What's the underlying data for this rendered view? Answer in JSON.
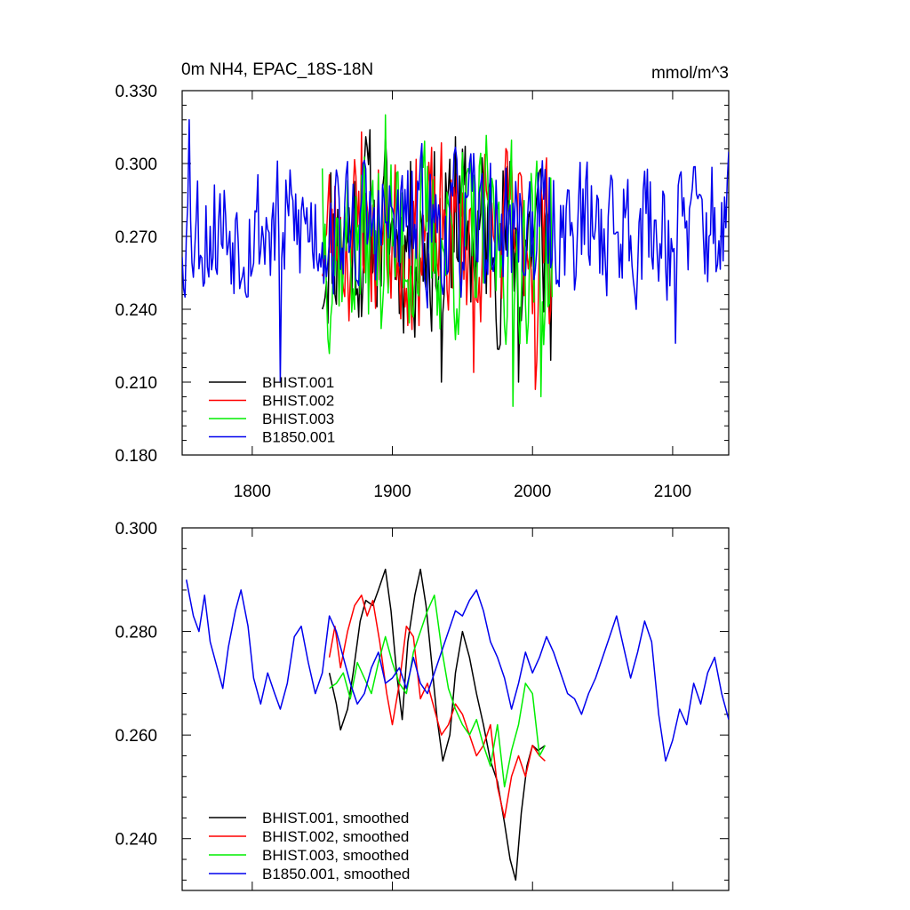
{
  "header": {
    "title": "0m NH4, EPAC_18S-18N",
    "units": "mmol/m^3"
  },
  "chart_data": [
    {
      "type": "line",
      "panel": "top",
      "title": "0m NH4, EPAC_18S-18N",
      "units": "mmol/m^3",
      "xlim": [
        1750,
        2140
      ],
      "ylim": [
        0.18,
        0.33
      ],
      "yticks": [
        0.18,
        0.21,
        0.24,
        0.27,
        0.3,
        0.33
      ],
      "ytick_labels": [
        "0.180",
        "0.210",
        "0.240",
        "0.270",
        "0.300",
        "0.330"
      ],
      "xticks": [
        1800,
        1900,
        2000,
        2100
      ],
      "xtick_labels": [
        "1800",
        "1900",
        "2000",
        "2100"
      ],
      "legend_position": "bottom-left",
      "series": [
        {
          "name": "BHIST.001",
          "color": "#000000",
          "start": 1850,
          "end": 2014,
          "mean": 0.271,
          "amp": 0.022,
          "seed": 11,
          "keypoints": [
            [
              1850,
              0.24
            ],
            [
              1880,
              0.3
            ],
            [
              1935,
              0.21
            ],
            [
              1945,
              0.311
            ],
            [
              1990,
              0.21
            ],
            [
              2013,
              0.219
            ]
          ]
        },
        {
          "name": "BHIST.002",
          "color": "#ff0000",
          "start": 1850,
          "end": 2014,
          "mean": 0.27,
          "amp": 0.02,
          "seed": 23,
          "keypoints": [
            [
              1878,
              0.313
            ],
            [
              1958,
              0.214
            ],
            [
              2002,
              0.207
            ],
            [
              2013,
              0.24
            ]
          ]
        },
        {
          "name": "BHIST.003",
          "color": "#00ee00",
          "start": 1850,
          "end": 2014,
          "mean": 0.268,
          "amp": 0.022,
          "seed": 37,
          "keypoints": [
            [
              1850,
              0.298
            ],
            [
              1895,
              0.32
            ],
            [
              1986,
              0.2
            ],
            [
              2006,
              0.204
            ]
          ]
        },
        {
          "name": "B1850.001",
          "color": "#0000ee",
          "start": 1750,
          "end": 2140,
          "mean": 0.274,
          "amp": 0.016,
          "seed": 53,
          "keypoints": [
            [
              1755,
              0.318
            ],
            [
              1820,
              0.21
            ],
            [
              2102,
              0.226
            ]
          ]
        }
      ]
    },
    {
      "type": "line",
      "panel": "bottom",
      "xlim": [
        1750,
        2140
      ],
      "ylim": [
        0.23,
        0.3
      ],
      "yticks": [
        0.24,
        0.26,
        0.28,
        0.3
      ],
      "ytick_labels": [
        "0.240",
        "0.260",
        "0.280",
        "0.300"
      ],
      "xticks": [
        1800,
        1900,
        2000,
        2100
      ],
      "xtick_labels": [],
      "legend_position": "bottom-left",
      "series": [
        {
          "name": "BHIST.001, smoothed",
          "color": "#000000",
          "points": [
            [
              1855,
              0.272
            ],
            [
              1860,
              0.266
            ],
            [
              1863,
              0.261
            ],
            [
              1868,
              0.265
            ],
            [
              1872,
              0.272
            ],
            [
              1877,
              0.282
            ],
            [
              1881,
              0.286
            ],
            [
              1886,
              0.285
            ],
            [
              1890,
              0.288
            ],
            [
              1895,
              0.292
            ],
            [
              1899,
              0.284
            ],
            [
              1903,
              0.272
            ],
            [
              1907,
              0.263
            ],
            [
              1911,
              0.278
            ],
            [
              1916,
              0.287
            ],
            [
              1920,
              0.292
            ],
            [
              1924,
              0.285
            ],
            [
              1928,
              0.274
            ],
            [
              1932,
              0.263
            ],
            [
              1936,
              0.255
            ],
            [
              1941,
              0.26
            ],
            [
              1945,
              0.272
            ],
            [
              1950,
              0.28
            ],
            [
              1955,
              0.275
            ],
            [
              1960,
              0.268
            ],
            [
              1965,
              0.262
            ],
            [
              1970,
              0.255
            ],
            [
              1975,
              0.251
            ],
            [
              1980,
              0.243
            ],
            [
              1984,
              0.236
            ],
            [
              1988,
              0.232
            ],
            [
              1992,
              0.245
            ],
            [
              1996,
              0.254
            ],
            [
              2000,
              0.258
            ],
            [
              2004,
              0.257
            ],
            [
              2009,
              0.258
            ]
          ]
        },
        {
          "name": "BHIST.002, smoothed",
          "color": "#ff0000",
          "points": [
            [
              1855,
              0.275
            ],
            [
              1859,
              0.281
            ],
            [
              1863,
              0.273
            ],
            [
              1868,
              0.28
            ],
            [
              1873,
              0.285
            ],
            [
              1878,
              0.287
            ],
            [
              1882,
              0.283
            ],
            [
              1886,
              0.286
            ],
            [
              1891,
              0.278
            ],
            [
              1896,
              0.268
            ],
            [
              1900,
              0.262
            ],
            [
              1905,
              0.27
            ],
            [
              1910,
              0.281
            ],
            [
              1915,
              0.279
            ],
            [
              1920,
              0.267
            ],
            [
              1925,
              0.27
            ],
            [
              1930,
              0.265
            ],
            [
              1935,
              0.26
            ],
            [
              1940,
              0.262
            ],
            [
              1945,
              0.266
            ],
            [
              1950,
              0.264
            ],
            [
              1955,
              0.26
            ],
            [
              1960,
              0.256
            ],
            [
              1965,
              0.258
            ],
            [
              1970,
              0.262
            ],
            [
              1975,
              0.25
            ],
            [
              1980,
              0.244
            ],
            [
              1985,
              0.252
            ],
            [
              1990,
              0.256
            ],
            [
              1995,
              0.252
            ],
            [
              2000,
              0.258
            ],
            [
              2005,
              0.256
            ],
            [
              2009,
              0.255
            ]
          ]
        },
        {
          "name": "BHIST.003, smoothed",
          "color": "#00ee00",
          "points": [
            [
              1855,
              0.269
            ],
            [
              1860,
              0.27
            ],
            [
              1865,
              0.272
            ],
            [
              1870,
              0.267
            ],
            [
              1875,
              0.274
            ],
            [
              1880,
              0.271
            ],
            [
              1885,
              0.268
            ],
            [
              1890,
              0.274
            ],
            [
              1895,
              0.279
            ],
            [
              1900,
              0.274
            ],
            [
              1905,
              0.27
            ],
            [
              1910,
              0.268
            ],
            [
              1915,
              0.276
            ],
            [
              1920,
              0.28
            ],
            [
              1925,
              0.284
            ],
            [
              1930,
              0.287
            ],
            [
              1935,
              0.277
            ],
            [
              1940,
              0.269
            ],
            [
              1945,
              0.265
            ],
            [
              1950,
              0.262
            ],
            [
              1955,
              0.26
            ],
            [
              1960,
              0.263
            ],
            [
              1965,
              0.258
            ],
            [
              1970,
              0.254
            ],
            [
              1975,
              0.262
            ],
            [
              1980,
              0.25
            ],
            [
              1985,
              0.257
            ],
            [
              1990,
              0.262
            ],
            [
              1995,
              0.27
            ],
            [
              2000,
              0.268
            ],
            [
              2005,
              0.256
            ],
            [
              2009,
              0.258
            ]
          ]
        },
        {
          "name": "B1850.001, smoothed",
          "color": "#0000ee",
          "points": [
            [
              1753,
              0.29
            ],
            [
              1758,
              0.283
            ],
            [
              1762,
              0.28
            ],
            [
              1766,
              0.287
            ],
            [
              1770,
              0.278
            ],
            [
              1775,
              0.273
            ],
            [
              1779,
              0.269
            ],
            [
              1783,
              0.277
            ],
            [
              1788,
              0.284
            ],
            [
              1792,
              0.288
            ],
            [
              1797,
              0.281
            ],
            [
              1801,
              0.271
            ],
            [
              1806,
              0.266
            ],
            [
              1811,
              0.272
            ],
            [
              1816,
              0.268
            ],
            [
              1820,
              0.265
            ],
            [
              1825,
              0.27
            ],
            [
              1830,
              0.279
            ],
            [
              1835,
              0.281
            ],
            [
              1840,
              0.274
            ],
            [
              1845,
              0.268
            ],
            [
              1850,
              0.272
            ],
            [
              1855,
              0.283
            ],
            [
              1860,
              0.28
            ],
            [
              1865,
              0.275
            ],
            [
              1870,
              0.27
            ],
            [
              1875,
              0.266
            ],
            [
              1880,
              0.268
            ],
            [
              1885,
              0.273
            ],
            [
              1890,
              0.276
            ],
            [
              1895,
              0.27
            ],
            [
              1900,
              0.271
            ],
            [
              1905,
              0.273
            ],
            [
              1910,
              0.269
            ],
            [
              1915,
              0.275
            ],
            [
              1920,
              0.27
            ],
            [
              1925,
              0.268
            ],
            [
              1930,
              0.272
            ],
            [
              1935,
              0.276
            ],
            [
              1940,
              0.28
            ],
            [
              1945,
              0.284
            ],
            [
              1950,
              0.283
            ],
            [
              1955,
              0.286
            ],
            [
              1960,
              0.288
            ],
            [
              1965,
              0.284
            ],
            [
              1970,
              0.278
            ],
            [
              1975,
              0.275
            ],
            [
              1980,
              0.271
            ],
            [
              1985,
              0.265
            ],
            [
              1990,
              0.27
            ],
            [
              1995,
              0.276
            ],
            [
              2000,
              0.272
            ],
            [
              2005,
              0.275
            ],
            [
              2010,
              0.279
            ],
            [
              2015,
              0.276
            ],
            [
              2020,
              0.272
            ],
            [
              2025,
              0.268
            ],
            [
              2030,
              0.267
            ],
            [
              2035,
              0.264
            ],
            [
              2040,
              0.268
            ],
            [
              2045,
              0.271
            ],
            [
              2050,
              0.275
            ],
            [
              2055,
              0.279
            ],
            [
              2060,
              0.283
            ],
            [
              2065,
              0.277
            ],
            [
              2070,
              0.271
            ],
            [
              2075,
              0.276
            ],
            [
              2080,
              0.282
            ],
            [
              2085,
              0.278
            ],
            [
              2090,
              0.264
            ],
            [
              2095,
              0.255
            ],
            [
              2100,
              0.259
            ],
            [
              2105,
              0.265
            ],
            [
              2110,
              0.262
            ],
            [
              2115,
              0.27
            ],
            [
              2120,
              0.266
            ],
            [
              2125,
              0.272
            ],
            [
              2130,
              0.275
            ],
            [
              2135,
              0.268
            ],
            [
              2140,
              0.263
            ]
          ]
        }
      ]
    }
  ]
}
